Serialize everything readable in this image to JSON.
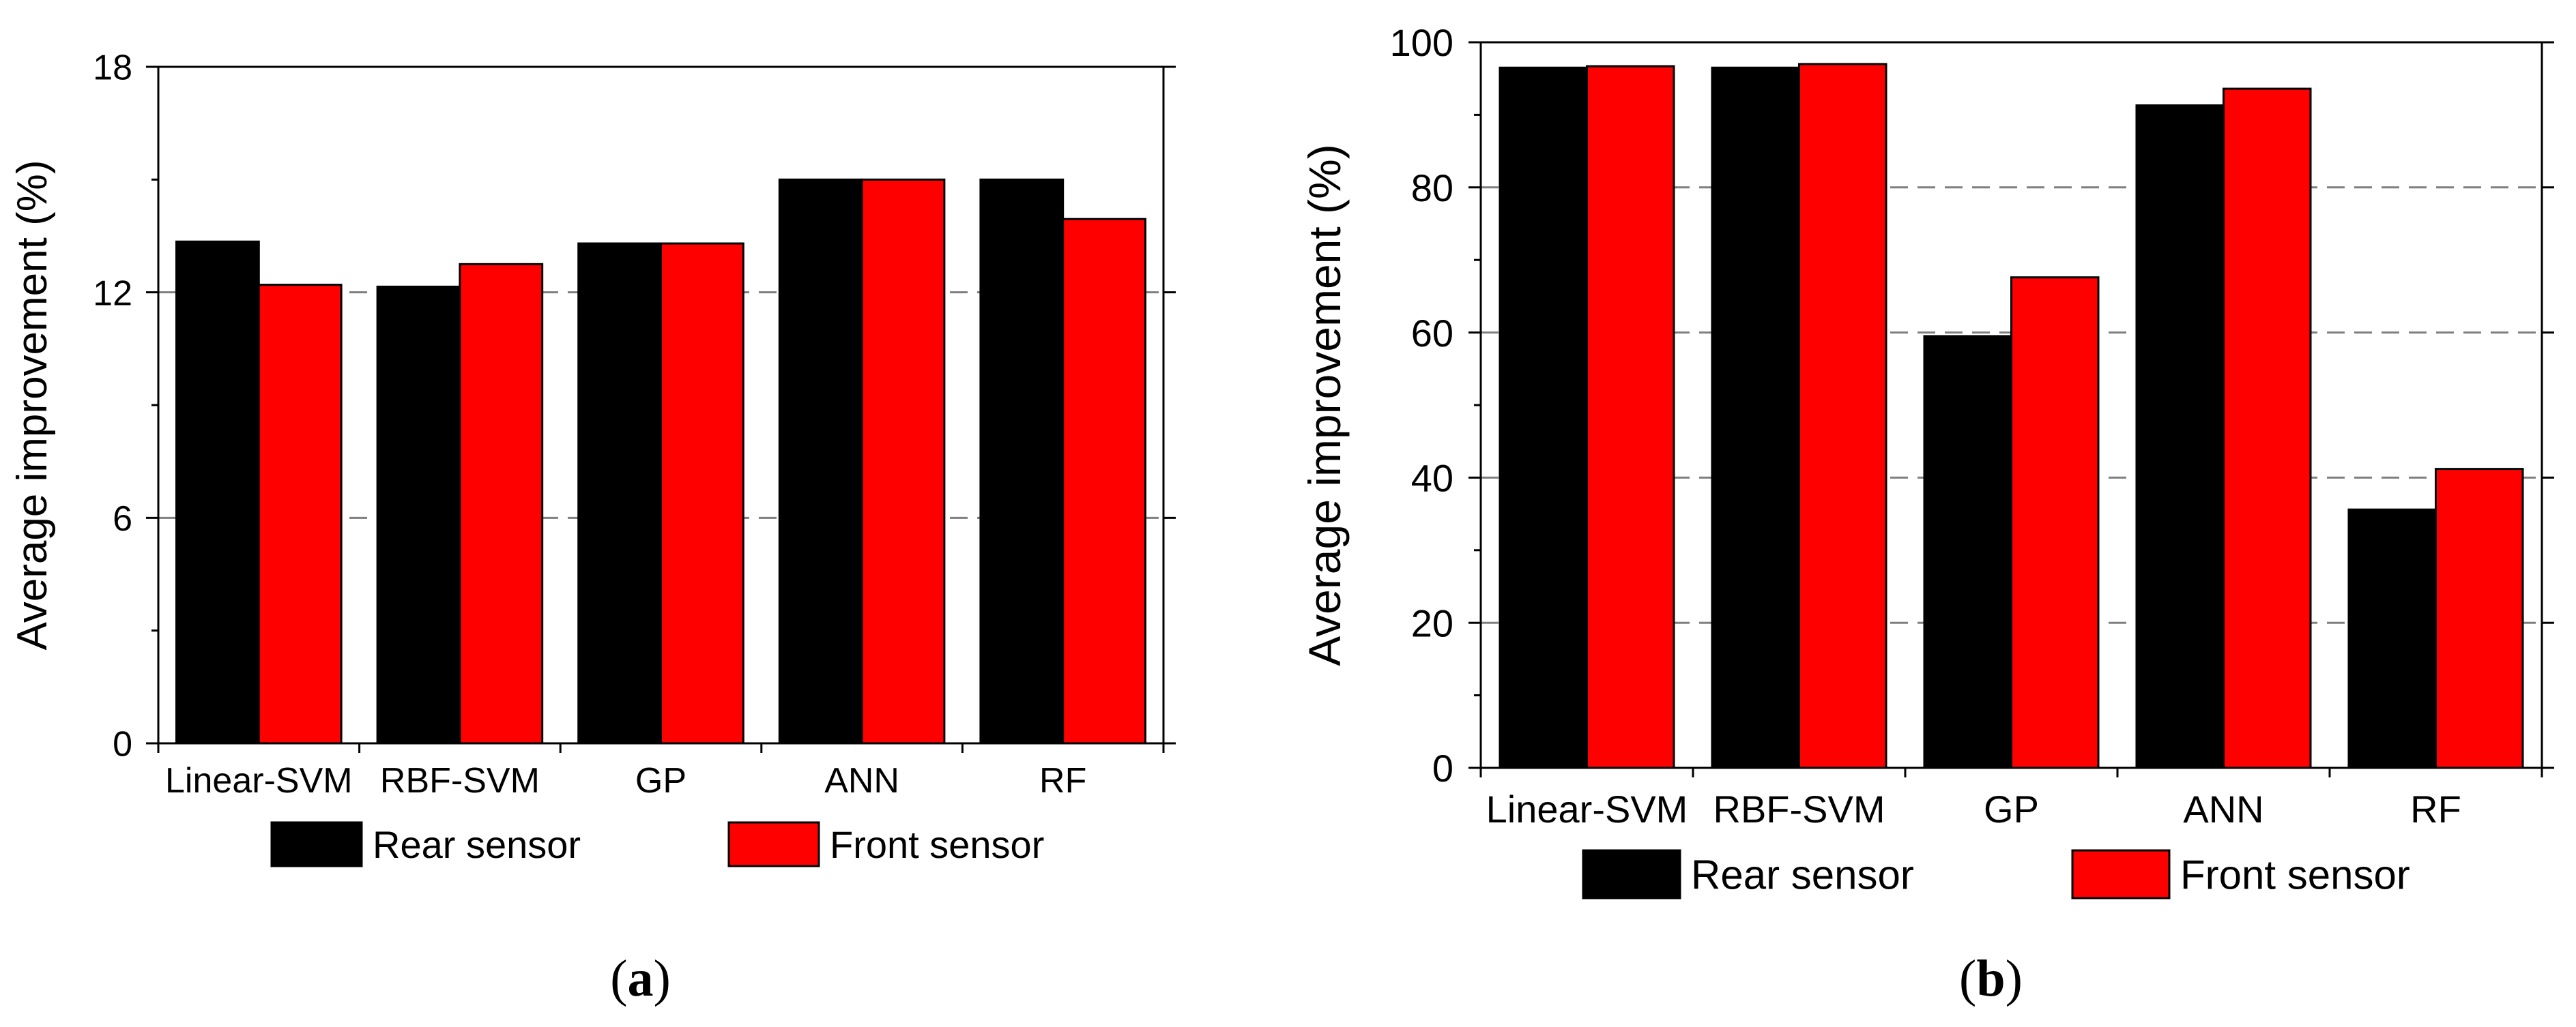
{
  "colors": {
    "rear": "#000000",
    "front": "#ff0000",
    "grid": "#7f7f7f",
    "axis": "#000000"
  },
  "chart_data": [
    {
      "type": "bar",
      "panel_label": "a",
      "categories": [
        "Linear-SVM",
        "RBF-SVM",
        "GP",
        "ANN",
        "RF"
      ],
      "series": [
        {
          "name": "Rear sensor",
          "values": [
            13.35,
            12.15,
            13.3,
            15.0,
            15.0
          ]
        },
        {
          "name": "Front sensor",
          "values": [
            12.2,
            12.75,
            13.3,
            15.0,
            13.95
          ]
        }
      ],
      "ylabel": "Average improvement (%)",
      "xlabel": "",
      "ylim": [
        0,
        18
      ],
      "yticks": [
        0,
        6,
        12,
        18
      ],
      "gridlines": [
        6,
        12
      ],
      "legend": "bottom"
    },
    {
      "type": "bar",
      "panel_label": "b",
      "categories": [
        "Linear-SVM",
        "RBF-SVM",
        "GP",
        "ANN",
        "RF"
      ],
      "series": [
        {
          "name": "Rear sensor",
          "values": [
            96.5,
            96.5,
            59.5,
            91.3,
            35.6
          ]
        },
        {
          "name": "Front sensor",
          "values": [
            96.7,
            97.0,
            67.6,
            93.6,
            41.2
          ]
        }
      ],
      "ylabel": "Average improvement (%)",
      "xlabel": "",
      "ylim": [
        0,
        100
      ],
      "yticks": [
        0,
        20,
        40,
        60,
        80,
        100
      ],
      "gridlines": [
        20,
        40,
        60,
        80
      ],
      "legend": "bottom"
    }
  ]
}
